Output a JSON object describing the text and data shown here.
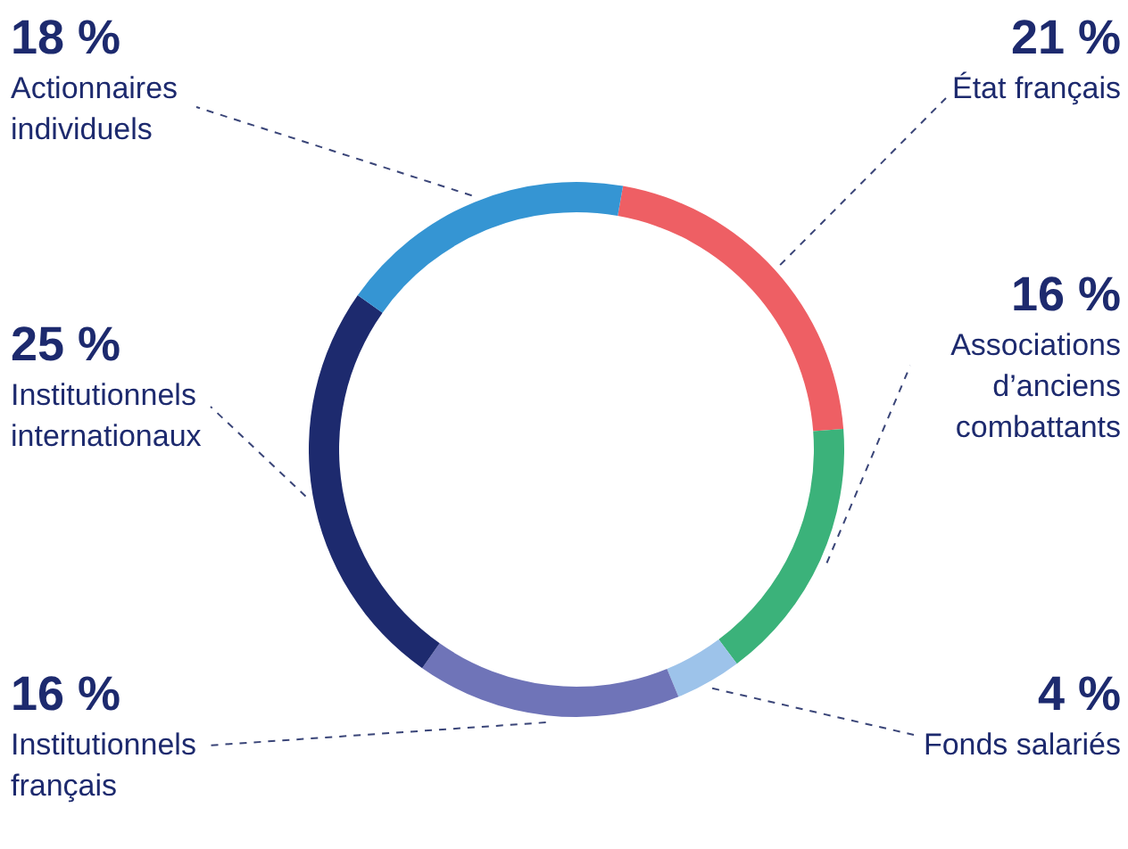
{
  "chart_data": {
    "type": "donut",
    "categories": [
      "État français",
      "Associations d’anciens combattants",
      "Fonds salariés",
      "Institutionnels français",
      "Institutionnels internationaux",
      "Actionnaires individuels"
    ],
    "values": [
      21,
      16,
      4,
      16,
      25,
      18
    ],
    "colors": [
      "#ee5f64",
      "#3bb27a",
      "#9dc3ea",
      "#6f74b8",
      "#1d2a6e",
      "#3595d3"
    ],
    "value_labels": [
      "21 %",
      "16 %",
      "4 %",
      "16 %",
      "25 %",
      "18 %"
    ]
  }
}
